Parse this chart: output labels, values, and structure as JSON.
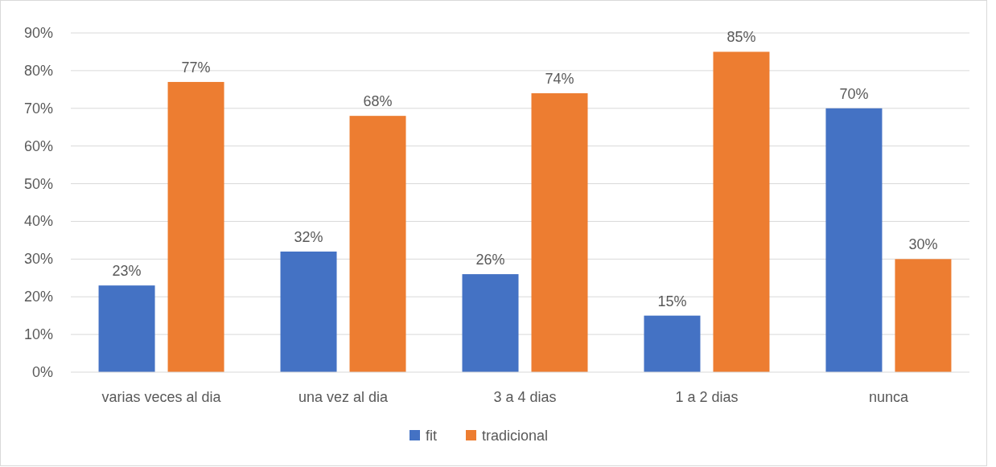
{
  "chart_data": {
    "type": "bar",
    "categories": [
      "varias veces al dia",
      "una vez al dia",
      "3 a 4 dias",
      "1 a 2 dias",
      "nunca"
    ],
    "series": [
      {
        "name": "fit",
        "color": "#4472c4",
        "values": [
          23,
          32,
          26,
          15,
          70
        ],
        "value_labels": [
          "23%",
          "32%",
          "26%",
          "15%",
          "70%"
        ]
      },
      {
        "name": "tradicional",
        "color": "#ed7d31",
        "values": [
          77,
          68,
          74,
          85,
          30
        ],
        "value_labels": [
          "77%",
          "68%",
          "74%",
          "85%",
          "30%"
        ]
      }
    ],
    "ylim": [
      0,
      90
    ],
    "yticks": [
      {
        "value": 0,
        "label": "0%"
      },
      {
        "value": 10,
        "label": "10%"
      },
      {
        "value": 20,
        "label": "20%"
      },
      {
        "value": 30,
        "label": "30%"
      },
      {
        "value": 40,
        "label": "40%"
      },
      {
        "value": 50,
        "label": "50%"
      },
      {
        "value": 60,
        "label": "60%"
      },
      {
        "value": 70,
        "label": "70%"
      },
      {
        "value": 80,
        "label": "80%"
      },
      {
        "value": 90,
        "label": "90%"
      }
    ],
    "grid": "y",
    "legend": "bottom"
  }
}
